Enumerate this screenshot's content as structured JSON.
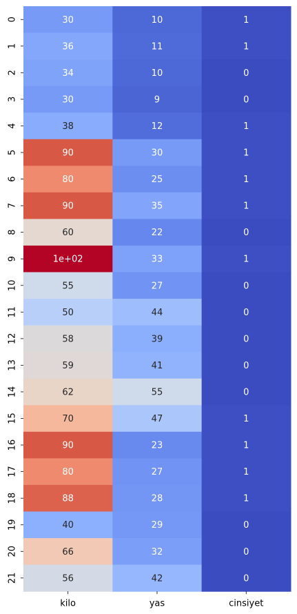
{
  "chart_data": {
    "type": "heatmap",
    "title": "",
    "xlabel": "",
    "ylabel": "",
    "colormap": "coolwarm",
    "colorbar": false,
    "columns": [
      "kilo",
      "yas",
      "cinsiyet"
    ],
    "rows": [
      "0",
      "1",
      "2",
      "3",
      "4",
      "5",
      "6",
      "7",
      "8",
      "9",
      "10",
      "11",
      "12",
      "13",
      "14",
      "15",
      "16",
      "17",
      "18",
      "19",
      "20",
      "21"
    ],
    "values": [
      [
        30,
        10,
        1
      ],
      [
        36,
        11,
        1
      ],
      [
        34,
        10,
        0
      ],
      [
        30,
        9,
        0
      ],
      [
        38,
        12,
        1
      ],
      [
        90,
        30,
        1
      ],
      [
        80,
        25,
        1
      ],
      [
        90,
        35,
        1
      ],
      [
        60,
        22,
        0
      ],
      [
        100,
        33,
        1
      ],
      [
        55,
        27,
        0
      ],
      [
        50,
        44,
        0
      ],
      [
        58,
        39,
        0
      ],
      [
        59,
        41,
        0
      ],
      [
        62,
        55,
        0
      ],
      [
        70,
        47,
        1
      ],
      [
        90,
        23,
        1
      ],
      [
        80,
        27,
        1
      ],
      [
        88,
        28,
        1
      ],
      [
        40,
        29,
        0
      ],
      [
        66,
        32,
        0
      ],
      [
        56,
        42,
        0
      ]
    ],
    "annotations": [
      [
        "30",
        "10",
        "1"
      ],
      [
        "36",
        "11",
        "1"
      ],
      [
        "34",
        "10",
        "0"
      ],
      [
        "30",
        "9",
        "0"
      ],
      [
        "38",
        "12",
        "1"
      ],
      [
        "90",
        "30",
        "1"
      ],
      [
        "80",
        "25",
        "1"
      ],
      [
        "90",
        "35",
        "1"
      ],
      [
        "60",
        "22",
        "0"
      ],
      [
        "1e+02",
        "33",
        "1"
      ],
      [
        "55",
        "27",
        "0"
      ],
      [
        "50",
        "44",
        "0"
      ],
      [
        "58",
        "39",
        "0"
      ],
      [
        "59",
        "41",
        "0"
      ],
      [
        "62",
        "55",
        "0"
      ],
      [
        "70",
        "47",
        "1"
      ],
      [
        "90",
        "23",
        "1"
      ],
      [
        "80",
        "27",
        "1"
      ],
      [
        "88",
        "28",
        "1"
      ],
      [
        "40",
        "29",
        "0"
      ],
      [
        "66",
        "32",
        "0"
      ],
      [
        "56",
        "42",
        "0"
      ]
    ],
    "vmin": 0,
    "vmax": 100
  }
}
